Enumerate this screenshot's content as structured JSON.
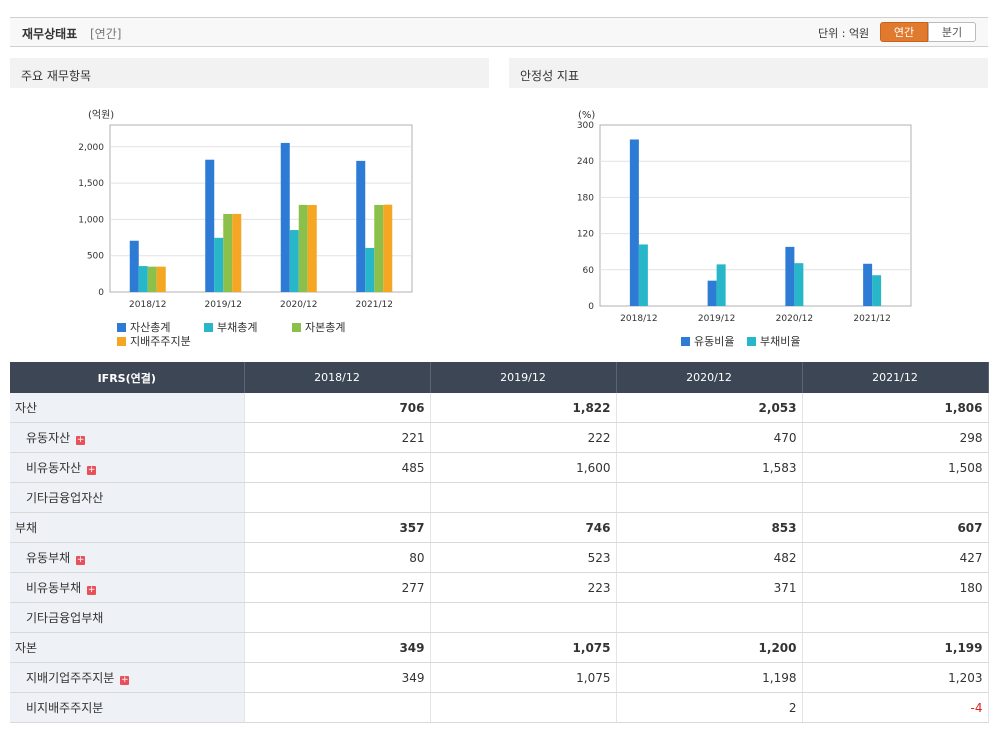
{
  "header": {
    "title": "재무상태표",
    "period": "[연간]",
    "unit": "단위 : 억원",
    "btn_annual": "연간",
    "btn_quarter": "분기"
  },
  "panels": {
    "left_title": "주요 재무항목",
    "right_title": "안정성 지표"
  },
  "chart_data": [
    {
      "type": "bar",
      "title": "",
      "ylabel": "(억원)",
      "categories": [
        "2018/12",
        "2019/12",
        "2020/12",
        "2021/12"
      ],
      "ylim": [
        0,
        2300
      ],
      "yticks": [
        0,
        500,
        1000,
        1500,
        2000
      ],
      "ytick_labels": [
        "0",
        "500",
        "1,000",
        "1,500",
        "2,000"
      ],
      "grid": true,
      "legend": "bottom",
      "series": [
        {
          "name": "자산총계",
          "color": "#2e7bd6",
          "values": [
            706,
            1822,
            2053,
            1806
          ]
        },
        {
          "name": "부채총계",
          "color": "#27b7c9",
          "values": [
            357,
            746,
            853,
            607
          ]
        },
        {
          "name": "자본총계",
          "color": "#8dc04a",
          "values": [
            349,
            1075,
            1200,
            1199
          ]
        },
        {
          "name": "지배주주지분",
          "color": "#f5a623",
          "values": [
            349,
            1075,
            1198,
            1203
          ]
        }
      ]
    },
    {
      "type": "bar",
      "title": "",
      "ylabel": "(%)",
      "categories": [
        "2018/12",
        "2019/12",
        "2020/12",
        "2021/12"
      ],
      "ylim": [
        0,
        300
      ],
      "yticks": [
        0,
        60,
        120,
        180,
        240,
        300
      ],
      "ytick_labels": [
        "0",
        "60",
        "120",
        "180",
        "240",
        "300"
      ],
      "grid": true,
      "legend": "bottom",
      "series": [
        {
          "name": "유동비율",
          "color": "#2e7bd6",
          "values": [
            276,
            42,
            98,
            70
          ]
        },
        {
          "name": "부채비율",
          "color": "#27b7c9",
          "values": [
            102,
            69,
            71,
            51
          ]
        }
      ]
    }
  ],
  "table": {
    "header": [
      "IFRS(연결)",
      "2018/12",
      "2019/12",
      "2020/12",
      "2021/12"
    ],
    "rows": [
      {
        "label": "자산",
        "major": true,
        "expand": false,
        "values": [
          "706",
          "1,822",
          "2,053",
          "1,806"
        ]
      },
      {
        "label": "유동자산",
        "major": false,
        "expand": true,
        "values": [
          "221",
          "222",
          "470",
          "298"
        ]
      },
      {
        "label": "비유동자산",
        "major": false,
        "expand": true,
        "values": [
          "485",
          "1,600",
          "1,583",
          "1,508"
        ]
      },
      {
        "label": "기타금융업자산",
        "major": false,
        "expand": false,
        "values": [
          "",
          "",
          "",
          ""
        ]
      },
      {
        "label": "부채",
        "major": true,
        "expand": false,
        "values": [
          "357",
          "746",
          "853",
          "607"
        ]
      },
      {
        "label": "유동부채",
        "major": false,
        "expand": true,
        "values": [
          "80",
          "523",
          "482",
          "427"
        ]
      },
      {
        "label": "비유동부채",
        "major": false,
        "expand": true,
        "values": [
          "277",
          "223",
          "371",
          "180"
        ]
      },
      {
        "label": "기타금융업부채",
        "major": false,
        "expand": false,
        "values": [
          "",
          "",
          "",
          ""
        ]
      },
      {
        "label": "자본",
        "major": true,
        "expand": false,
        "values": [
          "349",
          "1,075",
          "1,200",
          "1,199"
        ]
      },
      {
        "label": "지배기업주주지분",
        "major": false,
        "expand": true,
        "values": [
          "349",
          "1,075",
          "1,198",
          "1,203"
        ]
      },
      {
        "label": "비지배주주지분",
        "major": false,
        "expand": false,
        "values": [
          "",
          "",
          "2",
          "-4"
        ]
      }
    ]
  }
}
